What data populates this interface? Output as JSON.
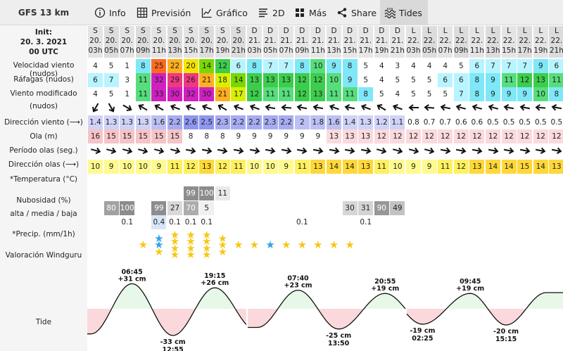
{
  "toolbar": {
    "model": "GFS 13 km",
    "tabs": [
      {
        "label": "Info",
        "icon": "info-icon"
      },
      {
        "label": "Previsión",
        "icon": "grid-icon"
      },
      {
        "label": "Gráfico",
        "icon": "chart-icon"
      },
      {
        "label": "2D",
        "icon": "layers-icon"
      },
      {
        "label": "Más",
        "icon": "blocks-icon"
      },
      {
        "label": "Share",
        "icon": "share-icon"
      },
      {
        "label": "Tides",
        "icon": "waves-icon"
      }
    ]
  },
  "init": {
    "label": "Init:",
    "date": "20. 3. 2021",
    "time": "00 UTC"
  },
  "columns": [
    {
      "d": "S",
      "n": "20.",
      "h": "03h"
    },
    {
      "d": "S",
      "n": "20.",
      "h": "05h"
    },
    {
      "d": "S",
      "n": "20.",
      "h": "07h"
    },
    {
      "d": "S",
      "n": "20.",
      "h": "09h"
    },
    {
      "d": "S",
      "n": "20.",
      "h": "11h"
    },
    {
      "d": "S",
      "n": "20.",
      "h": "13h"
    },
    {
      "d": "S",
      "n": "20.",
      "h": "15h"
    },
    {
      "d": "S",
      "n": "20.",
      "h": "17h"
    },
    {
      "d": "S",
      "n": "20.",
      "h": "19h"
    },
    {
      "d": "S",
      "n": "20.",
      "h": "21h"
    },
    {
      "d": "D",
      "n": "21.",
      "h": "03h"
    },
    {
      "d": "D",
      "n": "21.",
      "h": "05h"
    },
    {
      "d": "D",
      "n": "21.",
      "h": "07h"
    },
    {
      "d": "D",
      "n": "21.",
      "h": "09h"
    },
    {
      "d": "D",
      "n": "21.",
      "h": "11h"
    },
    {
      "d": "D",
      "n": "21.",
      "h": "13h"
    },
    {
      "d": "D",
      "n": "21.",
      "h": "15h"
    },
    {
      "d": "D",
      "n": "21.",
      "h": "17h"
    },
    {
      "d": "D",
      "n": "21.",
      "h": "19h"
    },
    {
      "d": "D",
      "n": "21.",
      "h": "21h"
    },
    {
      "d": "L",
      "n": "22.",
      "h": "03h"
    },
    {
      "d": "L",
      "n": "22.",
      "h": "05h"
    },
    {
      "d": "L",
      "n": "22.",
      "h": "07h"
    },
    {
      "d": "L",
      "n": "22.",
      "h": "09h"
    },
    {
      "d": "L",
      "n": "22.",
      "h": "11h"
    },
    {
      "d": "L",
      "n": "22.",
      "h": "13h"
    },
    {
      "d": "L",
      "n": "22.",
      "h": "15h"
    },
    {
      "d": "L",
      "n": "22.",
      "h": "17h"
    },
    {
      "d": "L",
      "n": "22.",
      "h": "19h"
    },
    {
      "d": "L",
      "n": "22.",
      "h": "21h"
    }
  ],
  "row_labels": {
    "wind": "Velocidad viento (nudos)",
    "gusts": "Ráfagas (nudos)",
    "mod1": "Viento modificado",
    "mod2": "(nudos)",
    "wdir": "Dirección viento (⟶)",
    "wave": "Ola (m)",
    "period": "Período olas (seg.)",
    "wavedir": "Dirección olas (⟶)",
    "temp": "*Temperatura (°C)",
    "cloud1": "Nubosidad (%)",
    "cloud2": "alta / media / baja",
    "precip": "*Precip. (mm/1h)",
    "rating": "Valoración Windguru",
    "tide": "Tide"
  },
  "wind": [
    "4",
    "5",
    "1",
    "8",
    "25",
    "22",
    "20",
    "14",
    "12",
    "6",
    "8",
    "7",
    "7",
    "8",
    "10",
    "9",
    "8",
    "5",
    "4",
    "3",
    "4",
    "4",
    "4",
    "5",
    "6",
    "7",
    "7",
    "7",
    "9",
    "6"
  ],
  "gusts": [
    "6",
    "7",
    "3",
    "11",
    "32",
    "29",
    "26",
    "21",
    "18",
    "14",
    "13",
    "13",
    "13",
    "12",
    "12",
    "10",
    "9",
    "5",
    "4",
    "5",
    "5",
    "5",
    "6",
    "6",
    "8",
    "9",
    "11",
    "12",
    "13",
    "11"
  ],
  "modwind": [
    "4",
    "5",
    "1",
    "11",
    "33",
    "30",
    "32",
    "30",
    "21",
    "17",
    "12",
    "11",
    "11",
    "12",
    "13",
    "11",
    "11",
    "8",
    "5",
    "4",
    "5",
    "5",
    "5",
    "7",
    "8",
    "9",
    "9",
    "9",
    "10",
    "8"
  ],
  "wind_dir_deg": [
    120,
    60,
    30,
    -150,
    -150,
    -160,
    -160,
    -160,
    -150,
    -160,
    -160,
    -170,
    -175,
    -170,
    -170,
    -160,
    -170,
    -160,
    -150,
    -160,
    -180,
    -175,
    -170,
    -165,
    -165,
    -165,
    -170,
    -170,
    -175,
    -170
  ],
  "wind_dir_val": [
    "1.4",
    "1.3",
    "1.3",
    "1.3",
    "1.6",
    "2.2",
    "2.6",
    "2.5",
    "2.3",
    "2.2",
    "2.2",
    "2.3",
    "2.2",
    "2",
    "1.8",
    "1.6",
    "1.4",
    "1.3",
    "1.2",
    "1.1",
    "0.8",
    "0.7",
    "0.7",
    "0.6",
    "0.6",
    "0.5",
    "0.5",
    "0.5",
    "0.5",
    "0.5"
  ],
  "wave": [
    "16",
    "15",
    "15",
    "15",
    "15",
    "15",
    "8",
    "8",
    "8",
    "9",
    "9",
    "9",
    "9",
    "9",
    "9",
    "13",
    "13",
    "13",
    "12",
    "12",
    "12",
    "12",
    "12",
    "12",
    "12",
    "12",
    "12",
    "12",
    "12",
    "12"
  ],
  "period_deg": [
    15,
    15,
    15,
    15,
    15,
    15,
    10,
    10,
    10,
    10,
    10,
    10,
    10,
    10,
    10,
    10,
    10,
    10,
    15,
    15,
    15,
    15,
    10,
    10,
    10,
    10,
    10,
    10,
    10,
    10
  ],
  "wavedir_deg": [
    10,
    10,
    10,
    10,
    10,
    10,
    10,
    10,
    10,
    10,
    10,
    10,
    10,
    10,
    10,
    10,
    10,
    10,
    10,
    10,
    10,
    10,
    10,
    10,
    10,
    10,
    10,
    10,
    10,
    10
  ],
  "temp": [
    "10",
    "9",
    "10",
    "10",
    "9",
    "11",
    "12",
    "13",
    "12",
    "11",
    "10",
    "10",
    "9",
    "11",
    "13",
    "14",
    "14",
    "13",
    "11",
    "10",
    "9",
    "9",
    "11",
    "12",
    "13",
    "14",
    "14",
    "15",
    "14",
    "13"
  ],
  "cloud_high": [
    "",
    "",
    "",
    "",
    "",
    "",
    "99",
    "100",
    "11",
    "",
    "",
    "",
    "",
    "",
    "",
    "",
    "",
    "",
    "",
    "",
    "",
    "",
    "",
    "",
    "",
    "",
    "",
    "",
    "",
    ""
  ],
  "cloud_mid": [
    "",
    "",
    "",
    "",
    "",
    "",
    "",
    "",
    "",
    "",
    "",
    "",
    "",
    "",
    "",
    "",
    "",
    "",
    "",
    "",
    "",
    "",
    "",
    "",
    "",
    "",
    "",
    "",
    "",
    ""
  ],
  "cloud_low": [
    "",
    "80",
    "100",
    "",
    "99",
    "27",
    "70",
    "5",
    "",
    "",
    "",
    "",
    "",
    "",
    "",
    "",
    "30",
    "31",
    "90",
    "49",
    "",
    "",
    "",
    "",
    "",
    "",
    "",
    "",
    "",
    ""
  ],
  "precip": [
    "",
    "",
    "0.1",
    "",
    "0.4",
    "0.1",
    "0.1",
    "0.1",
    "",
    "",
    "",
    "",
    "",
    "0.1",
    "",
    "",
    "",
    "0.1",
    "",
    "",
    "",
    "",
    "",
    "",
    "",
    "",
    "",
    "",
    "",
    ""
  ],
  "rating": [
    [],
    [],
    [],
    [
      "y"
    ],
    [
      "b",
      "b",
      "y"
    ],
    [
      "y",
      "y",
      "y",
      "y"
    ],
    [
      "y",
      "y",
      "y",
      "y"
    ],
    [
      "y",
      "y",
      "y",
      "y"
    ],
    [
      "y",
      "y",
      "y"
    ],
    [
      "y"
    ],
    [
      "y"
    ],
    [
      "b"
    ],
    [
      "y"
    ],
    [
      "y"
    ],
    [
      "y"
    ],
    [
      "y"
    ],
    [
      "y"
    ],
    [],
    [],
    [],
    [],
    [],
    [],
    [],
    [],
    [],
    [],
    [],
    [],
    []
  ],
  "tides": [
    {
      "time": "06:45",
      "height": "+31 cm",
      "type": "high"
    },
    {
      "time": "12:55",
      "height": "-33 cm",
      "type": "low"
    },
    {
      "time": "19:15",
      "height": "+26 cm",
      "type": "high"
    },
    {
      "time": "07:40",
      "height": "+23 cm",
      "type": "high"
    },
    {
      "time": "13:50",
      "height": "-25 cm",
      "type": "low"
    },
    {
      "time": "20:55",
      "height": "+19 cm",
      "type": "high"
    },
    {
      "time": "02:25",
      "height": "-19 cm",
      "type": "low"
    },
    {
      "time": "09:45",
      "height": "+19 cm",
      "type": "high"
    },
    {
      "time": "15:15",
      "height": "-20 cm",
      "type": "low"
    }
  ],
  "colors": {
    "wind_calm": "#ffffff",
    "wind_light": "#a6f0ff",
    "wind_mod": "#58e080",
    "wind_fresh": "#c0f000",
    "wind_strong": "#f0e000",
    "wind_gale": "#ff8020",
    "wind_storm": "#e8309a",
    "wave_dir_bg": "#b0b4ee",
    "wave_pink": "#f8d4d8",
    "temp_yellow": "#fff880",
    "temp_orange": "#ffd840",
    "star_yellow": "#f5c816",
    "star_blue": "#2fa4e6"
  }
}
